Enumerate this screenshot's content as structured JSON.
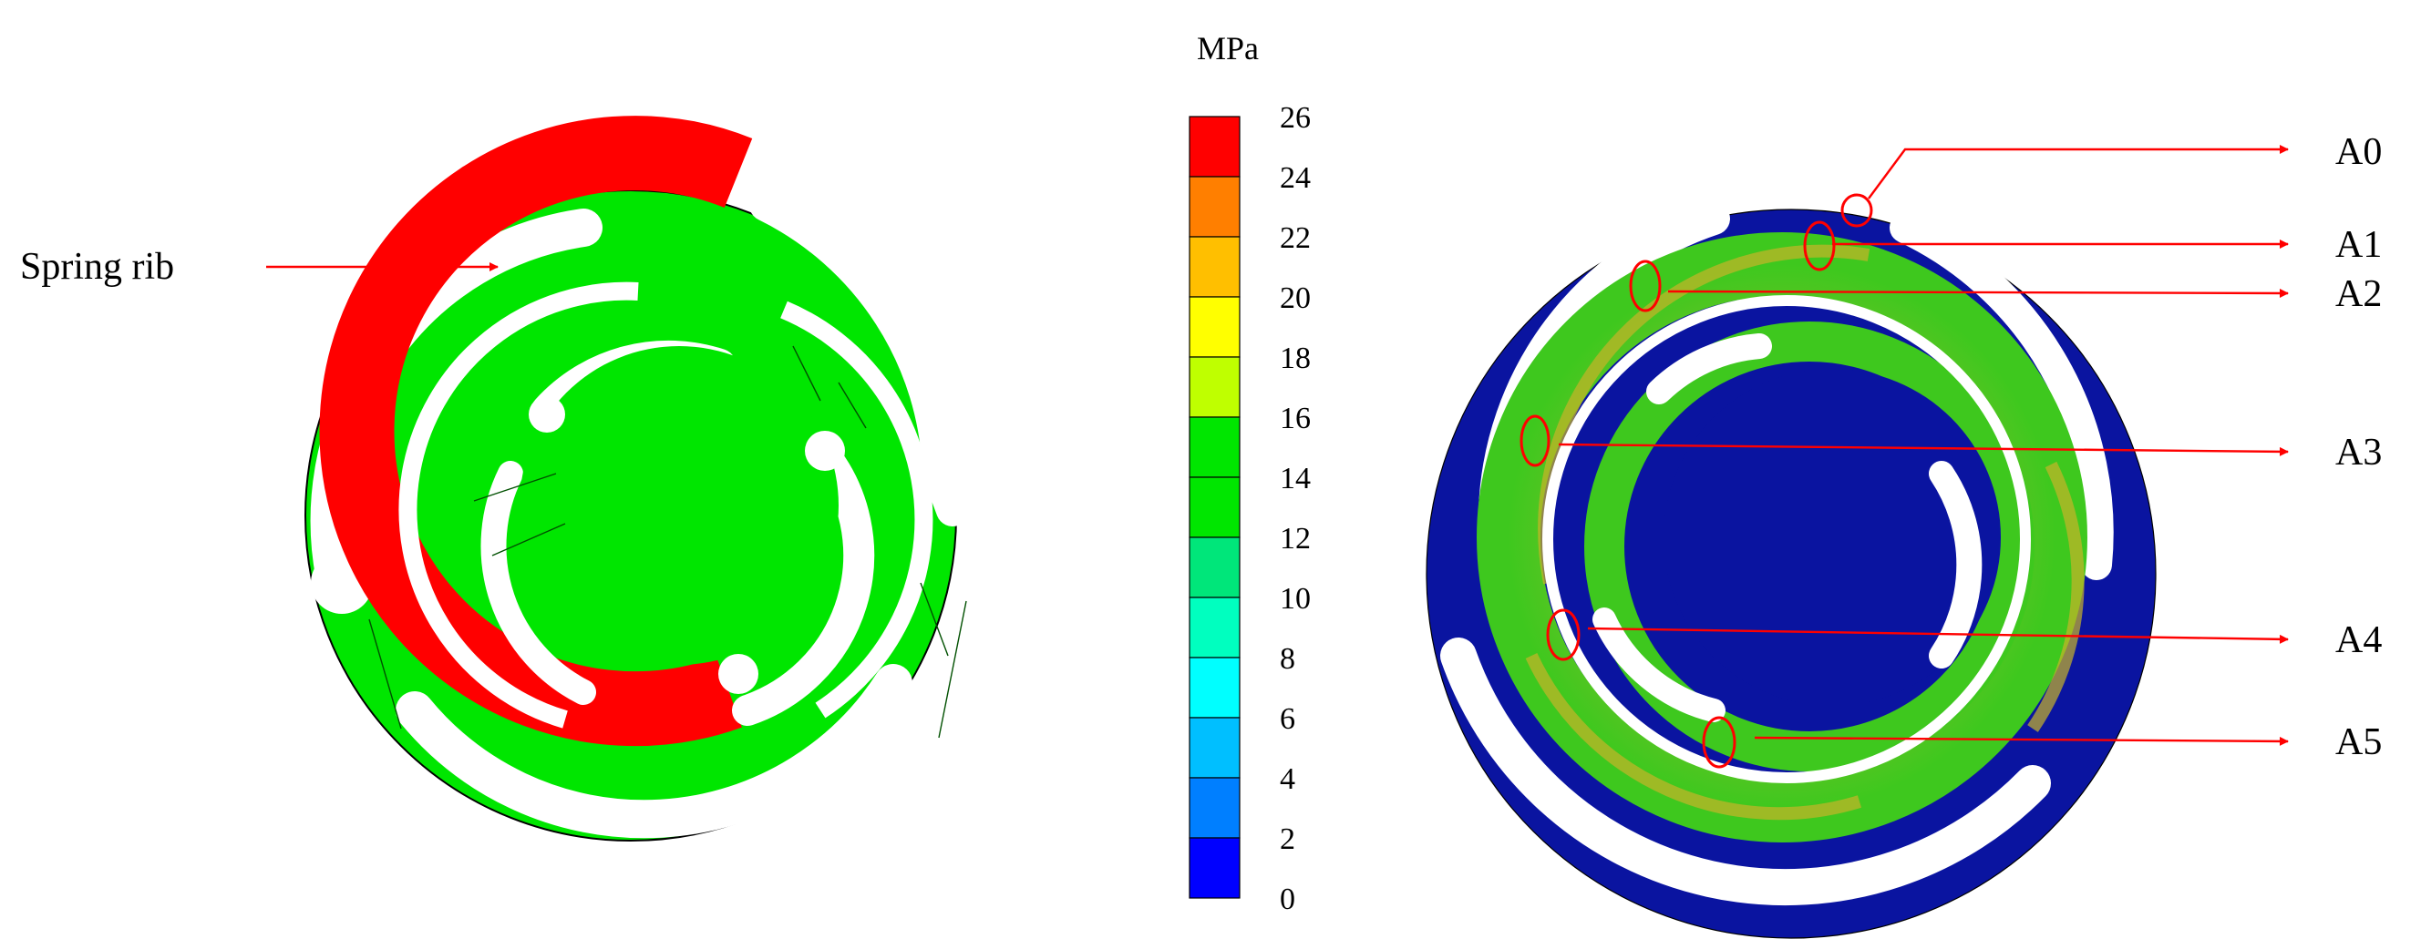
{
  "legend": {
    "unit": "MPa",
    "levels": [
      {
        "value": "26",
        "color": "#ff0000"
      },
      {
        "value": "24",
        "color": "#ff7f00"
      },
      {
        "value": "22",
        "color": "#ffbf00"
      },
      {
        "value": "20",
        "color": "#ffff00"
      },
      {
        "value": "18",
        "color": "#bfff00"
      },
      {
        "value": "16",
        "color": "#00e600"
      },
      {
        "value": "14",
        "color": "#00e600"
      },
      {
        "value": "12",
        "color": "#00e67a"
      },
      {
        "value": "10",
        "color": "#00ffbf"
      },
      {
        "value": "8",
        "color": "#00ffff"
      },
      {
        "value": "6",
        "color": "#00bfff"
      },
      {
        "value": "4",
        "color": "#007fff"
      },
      {
        "value": "2",
        "color": "#0000ff"
      },
      {
        "value": "0",
        "color": ""
      }
    ]
  },
  "left_model": {
    "callout": "Spring rib",
    "rib_color": "#ff0000",
    "body_color": "#00e600"
  },
  "right_model": {
    "body_color": "#0a14a0",
    "rib_color": "#3ec81e",
    "hot_color": "#c8b428",
    "points": [
      {
        "label": "A0"
      },
      {
        "label": "A1"
      },
      {
        "label": "A2"
      },
      {
        "label": "A3"
      },
      {
        "label": "A4"
      },
      {
        "label": "A5"
      }
    ]
  },
  "colors": {
    "callout": "#ff0000"
  }
}
